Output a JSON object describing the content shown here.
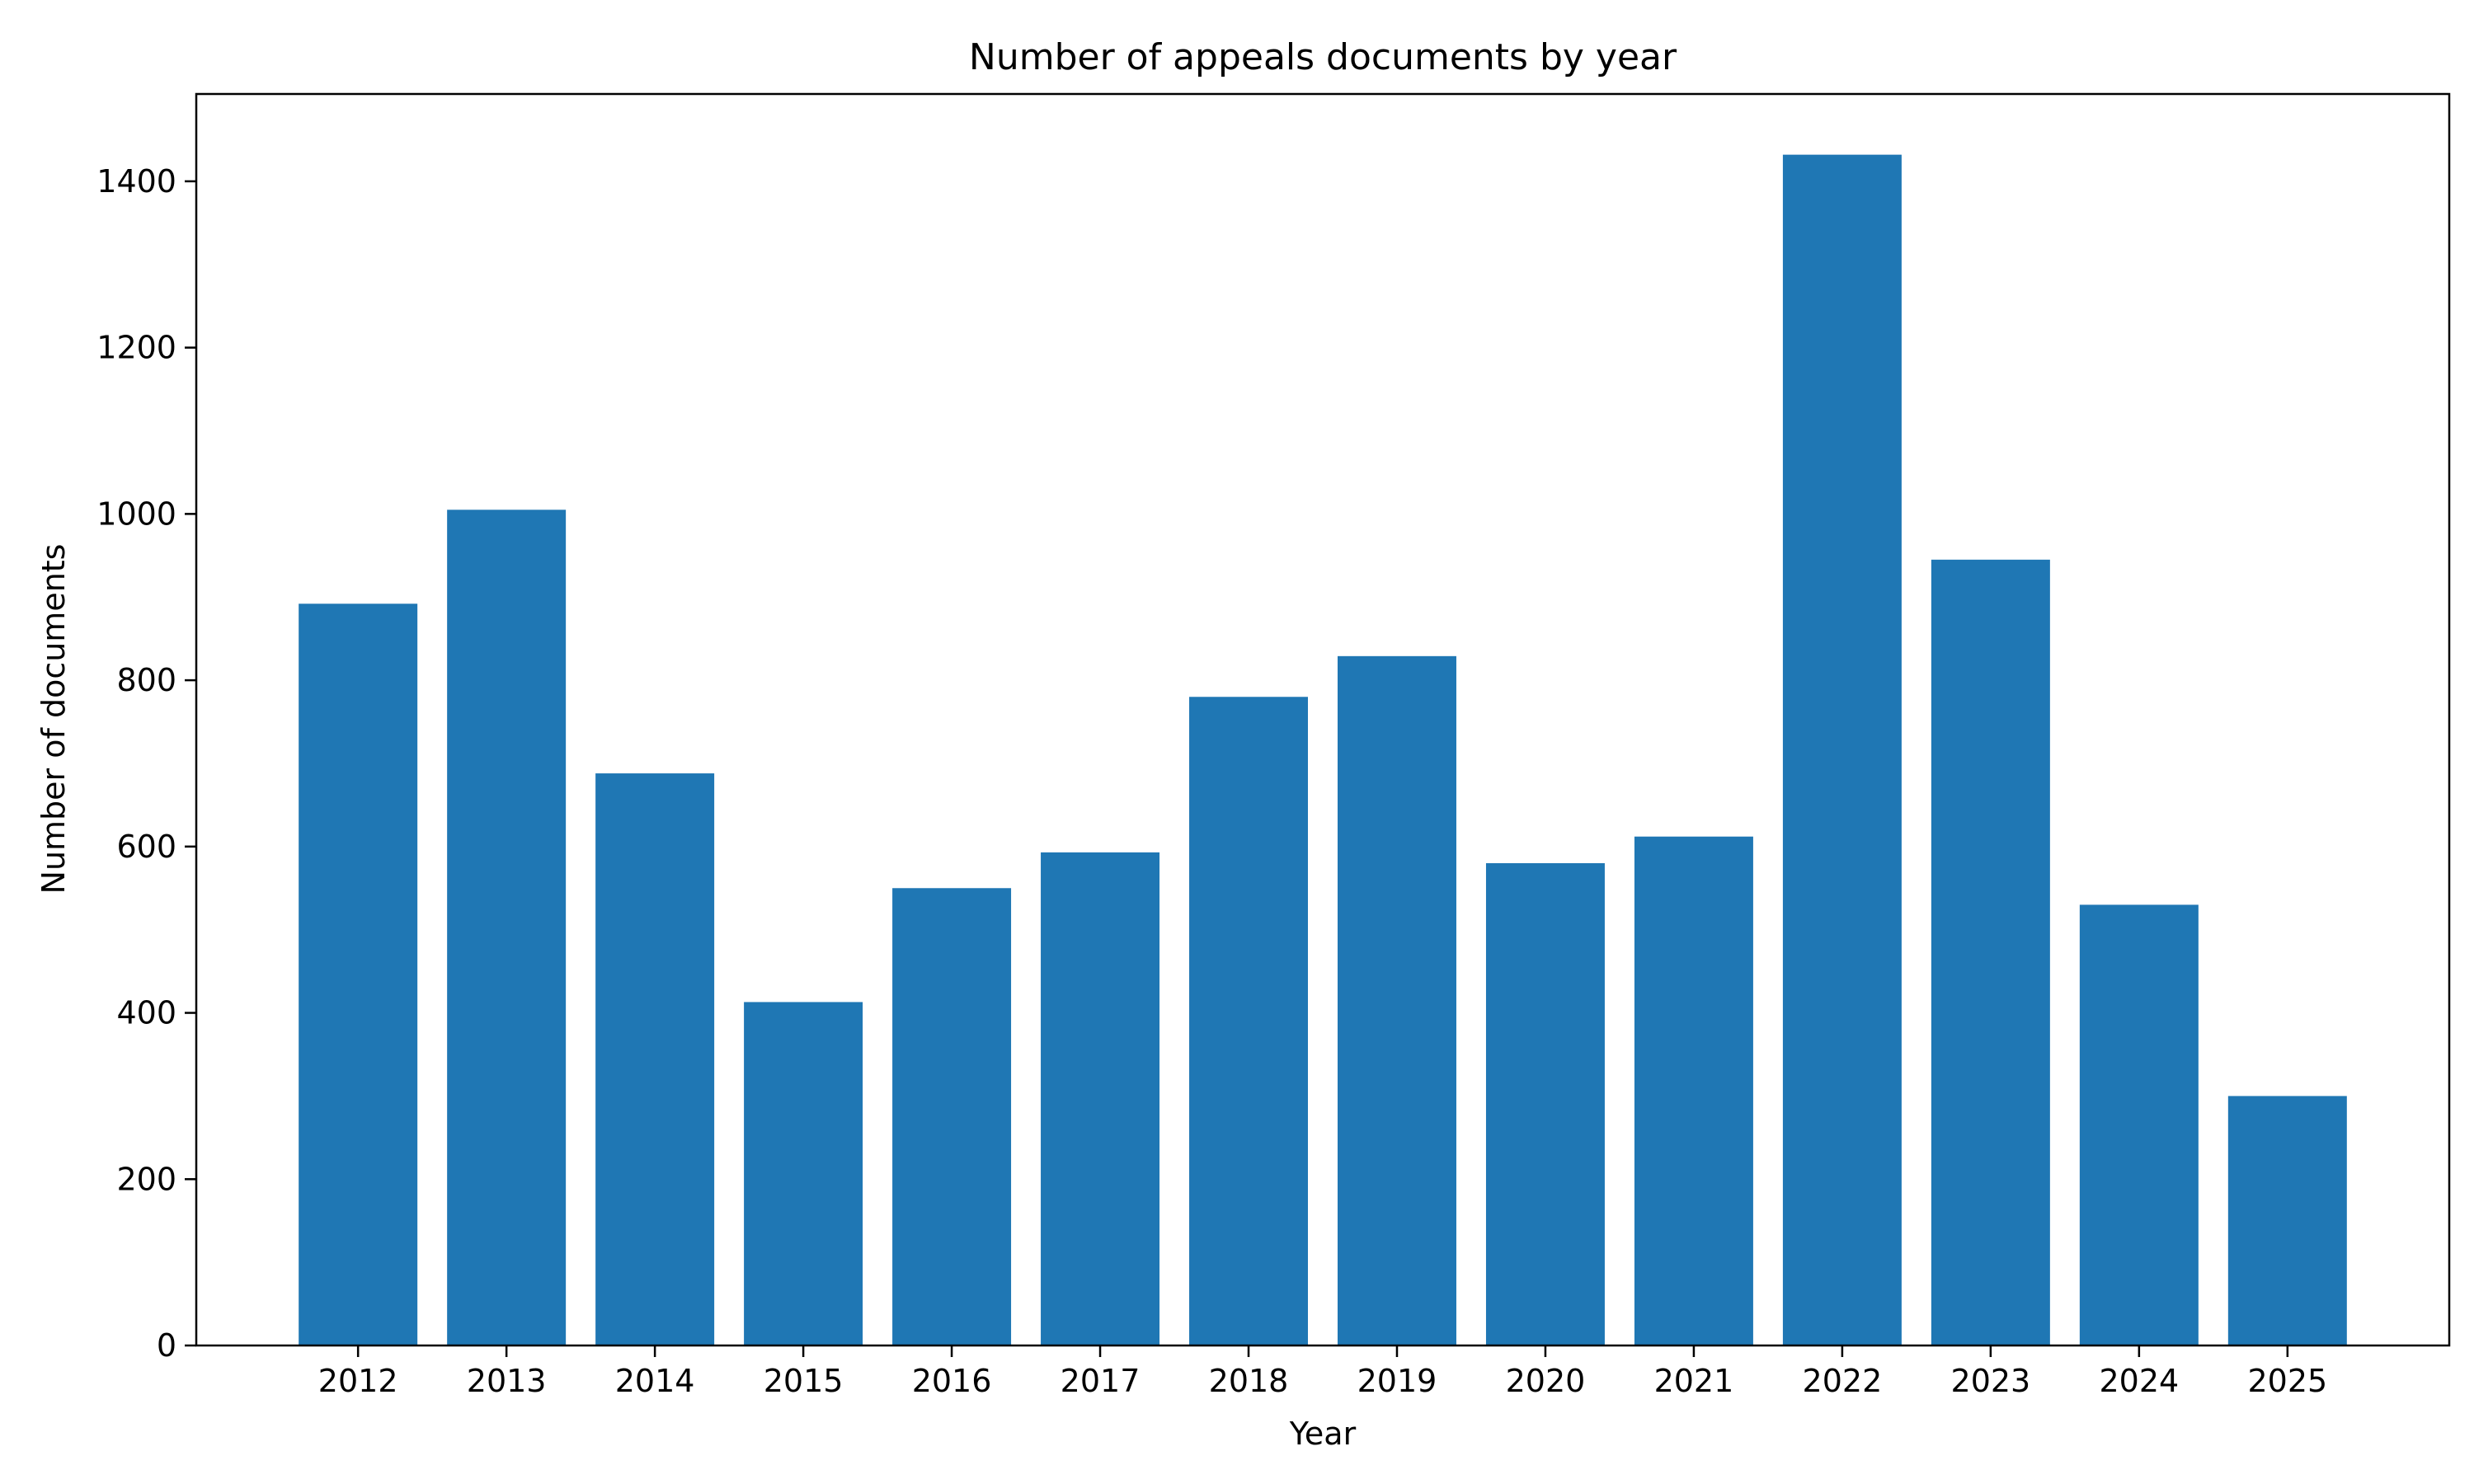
{
  "chart_data": {
    "type": "bar",
    "title": "Number of appeals documents by year",
    "xlabel": "Year",
    "ylabel": "Number of documents",
    "categories": [
      "2012",
      "2013",
      "2014",
      "2015",
      "2016",
      "2017",
      "2018",
      "2019",
      "2020",
      "2021",
      "2022",
      "2023",
      "2024",
      "2025"
    ],
    "values": [
      892,
      1005,
      688,
      413,
      550,
      593,
      780,
      829,
      580,
      612,
      1432,
      945,
      530,
      300
    ],
    "ylim": [
      0,
      1505
    ],
    "yticks": [
      0,
      200,
      400,
      600,
      800,
      1000,
      1200,
      1400
    ],
    "bar_color": "#1f77b4",
    "grid": false,
    "legend": "none"
  }
}
